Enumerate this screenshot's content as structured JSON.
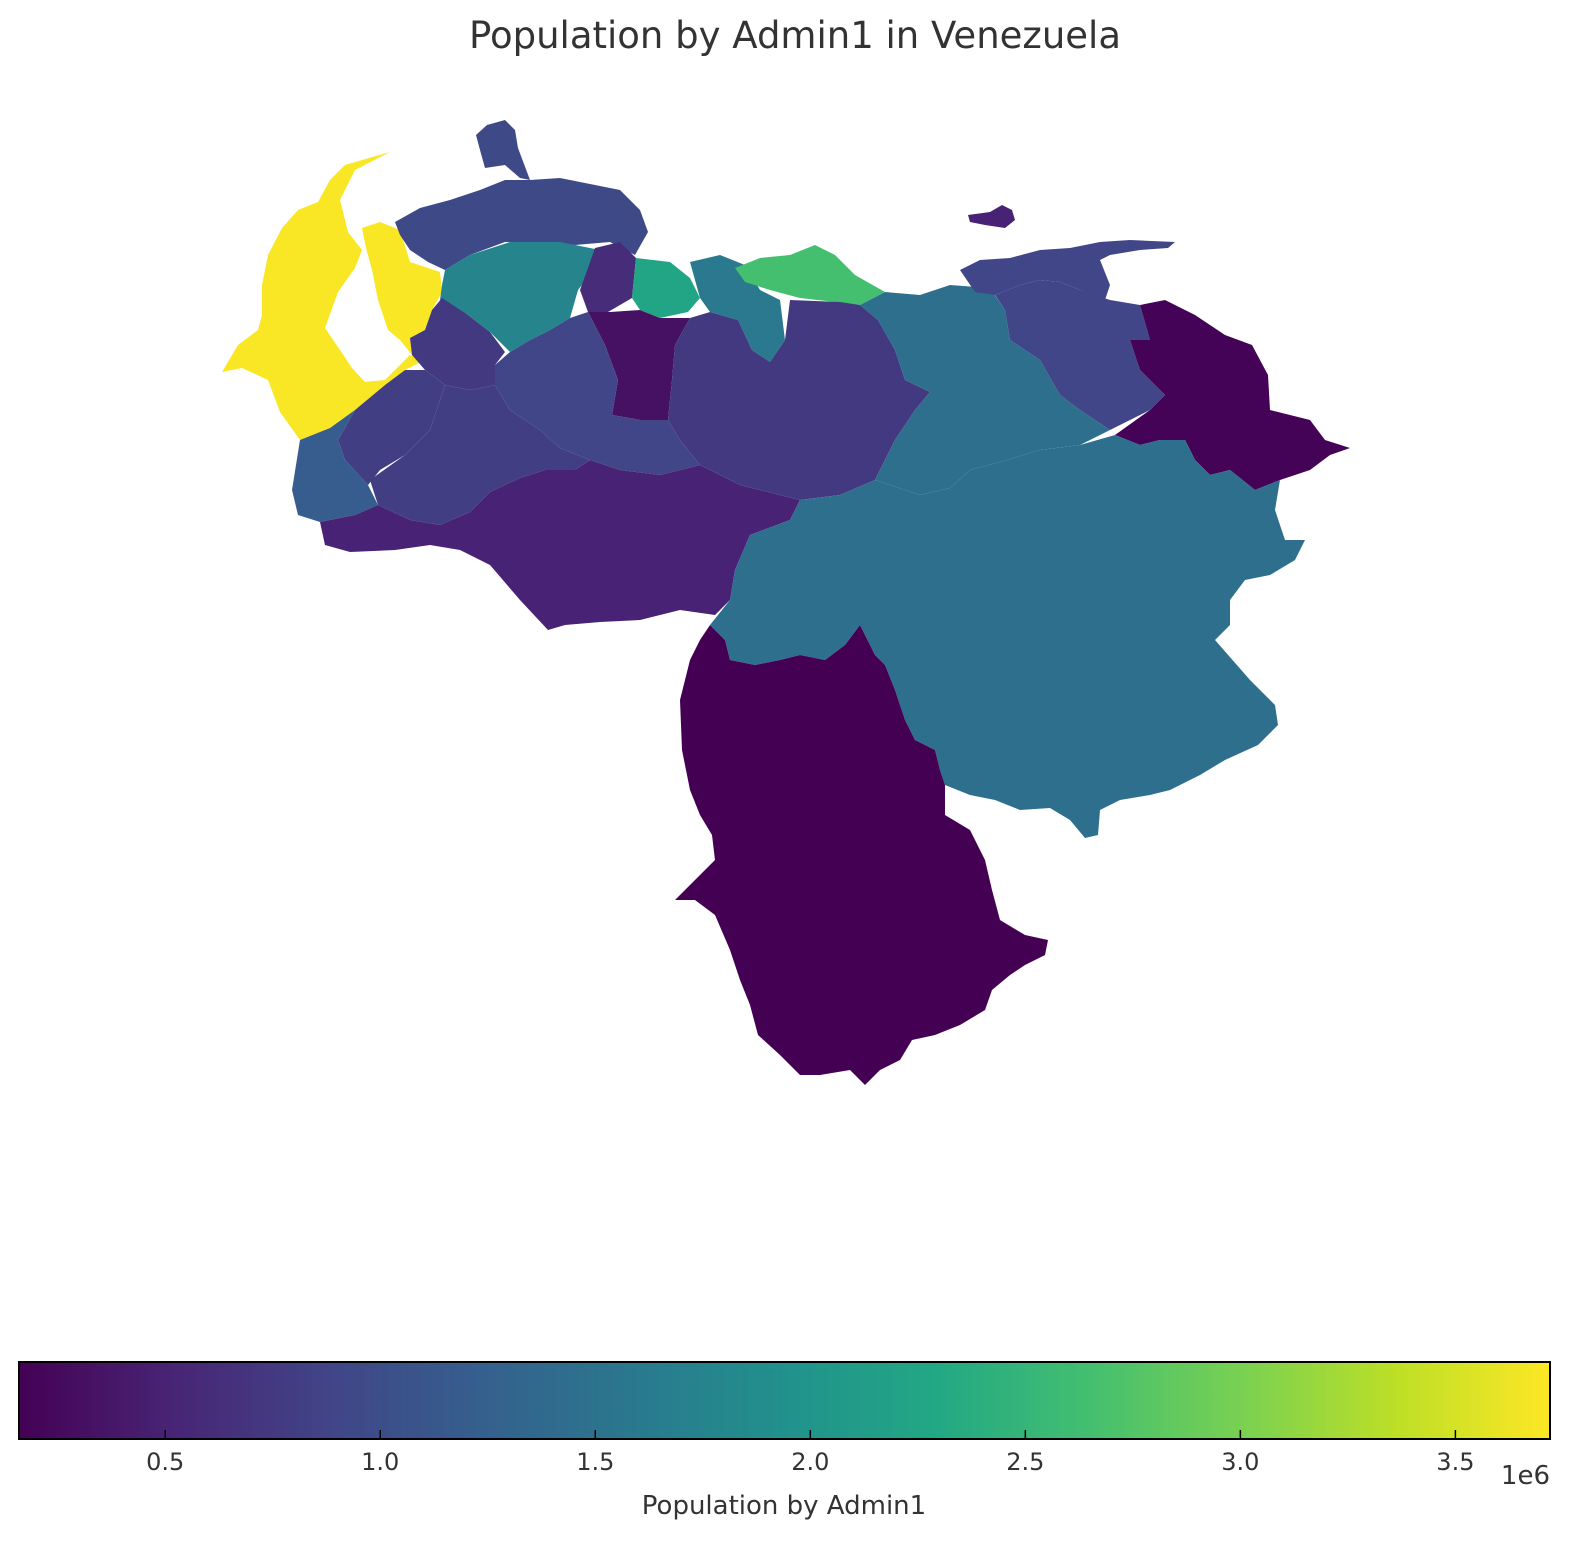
{
  "title": "Population by Admin1 in Venezuela",
  "colorbar": {
    "label": "Population by Admin1",
    "multiplier": "1e6",
    "min": 0.16,
    "max": 3.72,
    "ticks": [
      "0.5",
      "1.0",
      "1.5",
      "2.0",
      "2.5",
      "3.0",
      "3.5"
    ],
    "colormap": "viridis"
  },
  "map": {
    "country": "Venezuela",
    "regions": [
      {
        "id": "zulia-west",
        "value": 3.7
      },
      {
        "id": "zulia-east",
        "value": 3.7
      },
      {
        "id": "falcon",
        "value": 0.95
      },
      {
        "id": "falcon-paraguana",
        "value": 0.95
      },
      {
        "id": "lara",
        "value": 1.75
      },
      {
        "id": "yaracuy",
        "value": 0.6
      },
      {
        "id": "carabobo",
        "value": 2.25
      },
      {
        "id": "aragua",
        "value": 1.6
      },
      {
        "id": "vargas-miranda",
        "value": 2.65
      },
      {
        "id": "cojedes",
        "value": 0.32
      },
      {
        "id": "guarico",
        "value": 0.75
      },
      {
        "id": "portuguesa",
        "value": 0.9
      },
      {
        "id": "barinas",
        "value": 0.8
      },
      {
        "id": "trujillo",
        "value": 0.75
      },
      {
        "id": "merida",
        "value": 0.8
      },
      {
        "id": "tachira",
        "value": 1.2
      },
      {
        "id": "apure",
        "value": 0.5
      },
      {
        "id": "anzoategui",
        "value": 1.45
      },
      {
        "id": "sucre",
        "value": 0.9
      },
      {
        "id": "monagas",
        "value": 0.9
      },
      {
        "id": "delta-amacuro",
        "value": 0.18
      },
      {
        "id": "bolivar",
        "value": 1.45
      },
      {
        "id": "amazonas",
        "value": 0.16
      },
      {
        "id": "nueva-esparta",
        "value": 0.5
      },
      {
        "id": "lara-south",
        "value": 0.85
      }
    ]
  }
}
